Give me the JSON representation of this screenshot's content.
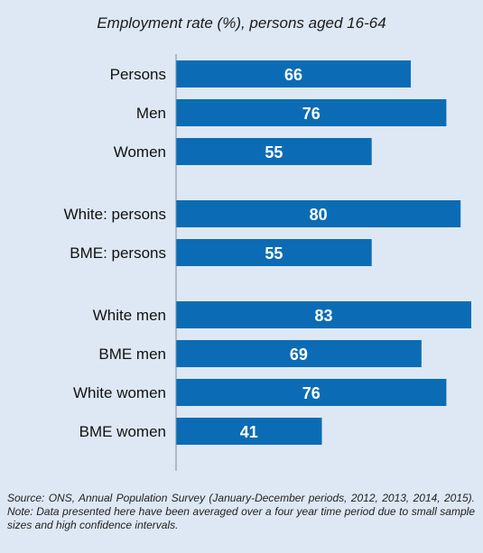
{
  "chart_data": {
    "type": "bar",
    "orientation": "horizontal",
    "title": "Employment rate (%), persons aged 16-64",
    "categories": [
      "Persons",
      "Men",
      "Women",
      "White: persons",
      "BME: persons",
      "White men",
      "BME men",
      "White women",
      "BME women"
    ],
    "values": [
      66,
      76,
      55,
      80,
      55,
      83,
      69,
      76,
      41
    ],
    "groups": [
      [
        0,
        1,
        2
      ],
      [
        3,
        4
      ],
      [
        5,
        6,
        7,
        8
      ]
    ],
    "xlim": [
      0,
      83
    ],
    "grid": false,
    "legend": "none",
    "data_labels": true,
    "bar_color": "#0b6cb5",
    "source": "Source: ONS, Annual Population Survey (January-December periods, 2012, 2013, 2014, 2015). Note: Data presented here have been averaged over a four year time period due to small sample sizes and high confidence intervals."
  },
  "colors": {
    "background": "#dde8f4",
    "bar": "#0b6cb5",
    "axis": "#7a8da0"
  }
}
